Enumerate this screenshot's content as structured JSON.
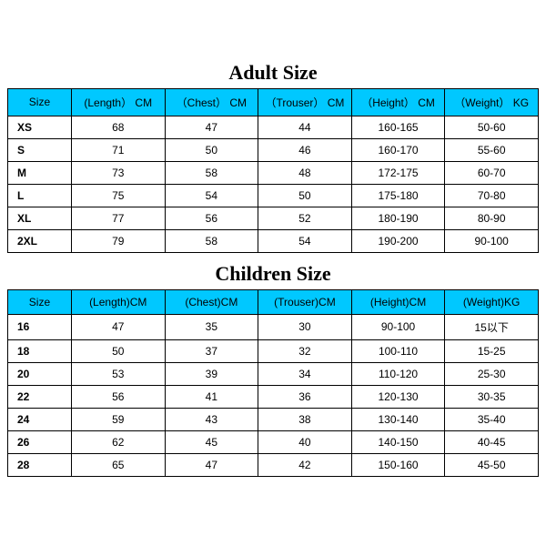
{
  "styling": {
    "header_bg": "#00c8ff",
    "border_color": "#000000",
    "title_fontsize": 22,
    "cell_fontsize": 12,
    "background": "#ffffff"
  },
  "adult": {
    "title": "Adult Size",
    "columns": [
      "Size",
      "(Length） CM",
      "（Chest） CM",
      "（Trouser） CM",
      "（Height） CM",
      "（Weight） KG"
    ],
    "rows": [
      {
        "size": "XS",
        "length": "68",
        "chest": "47",
        "trouser": "44",
        "height": "160-165",
        "weight": "50-60"
      },
      {
        "size": "S",
        "length": "71",
        "chest": "50",
        "trouser": "46",
        "height": "160-170",
        "weight": "55-60"
      },
      {
        "size": "M",
        "length": "73",
        "chest": "58",
        "trouser": "48",
        "height": "172-175",
        "weight": "60-70"
      },
      {
        "size": "L",
        "length": "75",
        "chest": "54",
        "trouser": "50",
        "height": "175-180",
        "weight": "70-80"
      },
      {
        "size": "XL",
        "length": "77",
        "chest": "56",
        "trouser": "52",
        "height": "180-190",
        "weight": "80-90"
      },
      {
        "size": "2XL",
        "length": "79",
        "chest": "58",
        "trouser": "54",
        "height": "190-200",
        "weight": "90-100"
      }
    ]
  },
  "children": {
    "title": "Children Size",
    "columns": [
      "Size",
      "(Length)CM",
      "(Chest)CM",
      "(Trouser)CM",
      "(Height)CM",
      "(Weight)KG"
    ],
    "rows": [
      {
        "size": "16",
        "length": "47",
        "chest": "35",
        "trouser": "30",
        "height": "90-100",
        "weight": "15以下"
      },
      {
        "size": "18",
        "length": "50",
        "chest": "37",
        "trouser": "32",
        "height": "100-110",
        "weight": "15-25"
      },
      {
        "size": "20",
        "length": "53",
        "chest": "39",
        "trouser": "34",
        "height": "110-120",
        "weight": "25-30"
      },
      {
        "size": "22",
        "length": "56",
        "chest": "41",
        "trouser": "36",
        "height": "120-130",
        "weight": "30-35"
      },
      {
        "size": "24",
        "length": "59",
        "chest": "43",
        "trouser": "38",
        "height": "130-140",
        "weight": "35-40"
      },
      {
        "size": "26",
        "length": "62",
        "chest": "45",
        "trouser": "40",
        "height": "140-150",
        "weight": "40-45"
      },
      {
        "size": "28",
        "length": "65",
        "chest": "47",
        "trouser": "42",
        "height": "150-160",
        "weight": "45-50"
      }
    ]
  }
}
